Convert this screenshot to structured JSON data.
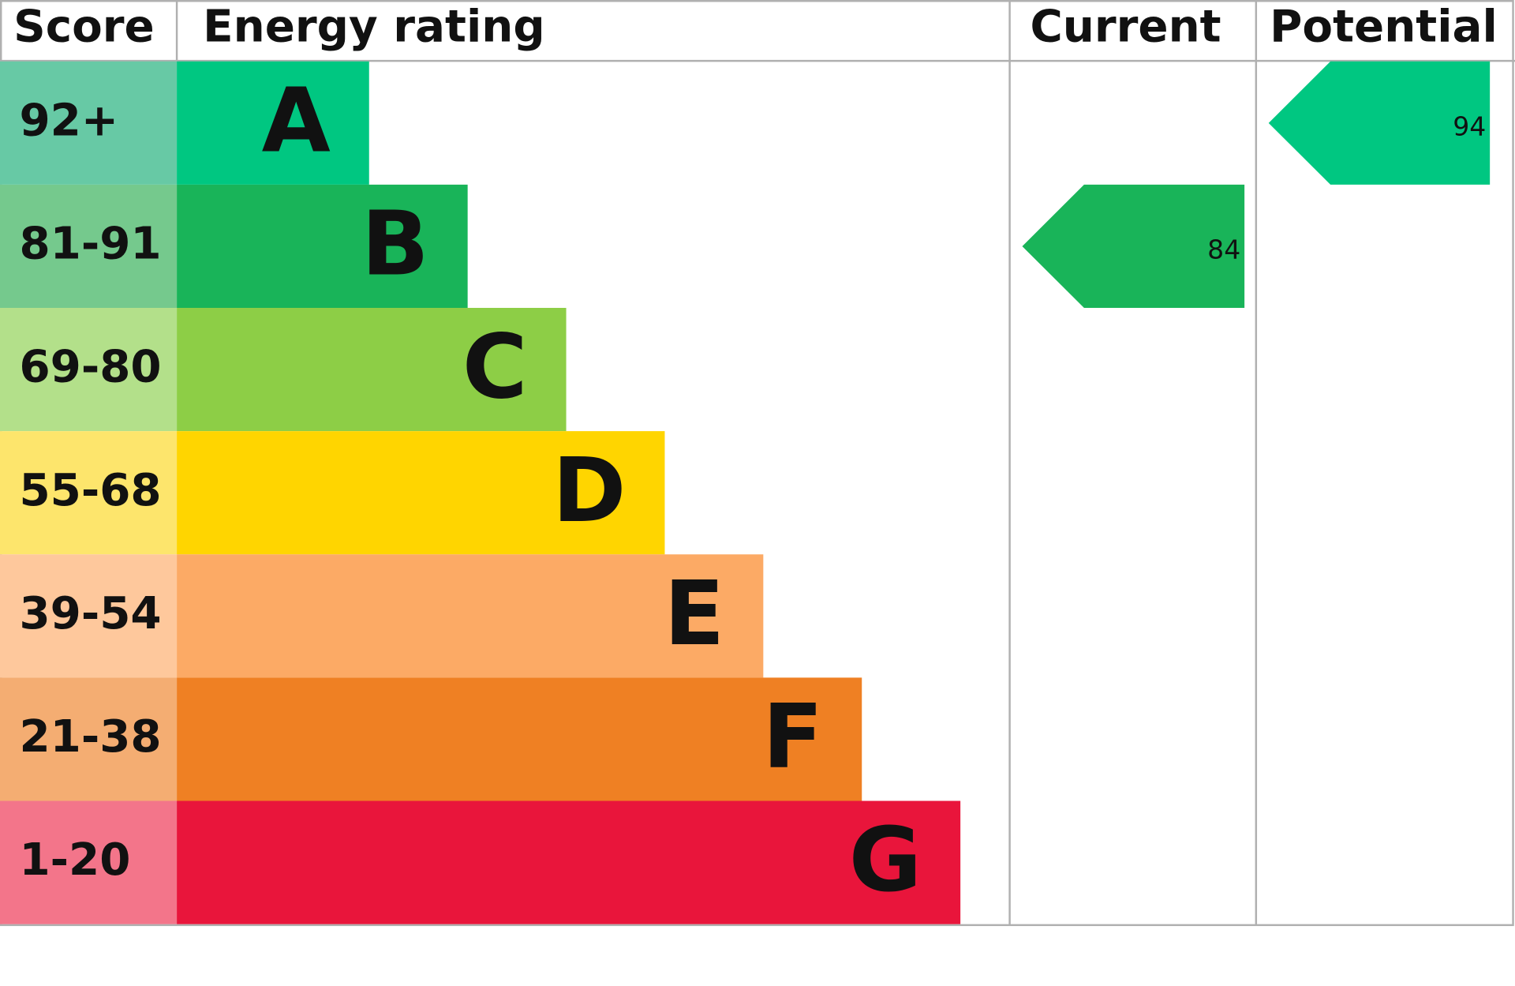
{
  "header": {
    "score": "Score",
    "rating": "Energy rating",
    "current": "Current",
    "potential": "Potential"
  },
  "bands": [
    {
      "score": "92+",
      "letter": "A",
      "color": "#00c781",
      "score_color": "#67c9a5"
    },
    {
      "score": "81-91",
      "letter": "B",
      "color": "#19b459",
      "score_color": "#75c98d"
    },
    {
      "score": "69-80",
      "letter": "C",
      "color": "#8dce46",
      "score_color": "#b3e08a"
    },
    {
      "score": "55-68",
      "letter": "D",
      "color": "#ffd500",
      "score_color": "#fde56c"
    },
    {
      "score": "39-54",
      "letter": "E",
      "color": "#fcaa65",
      "score_color": "#fec89c"
    },
    {
      "score": "21-38",
      "letter": "F",
      "color": "#ef8023",
      "score_color": "#f4ad72"
    },
    {
      "score": "1-20",
      "letter": "G",
      "color": "#e9153b",
      "score_color": "#f3758a"
    }
  ],
  "current": {
    "value": 84,
    "color": "#19b459"
  },
  "potential": {
    "value": 94,
    "color": "#00c781"
  }
}
